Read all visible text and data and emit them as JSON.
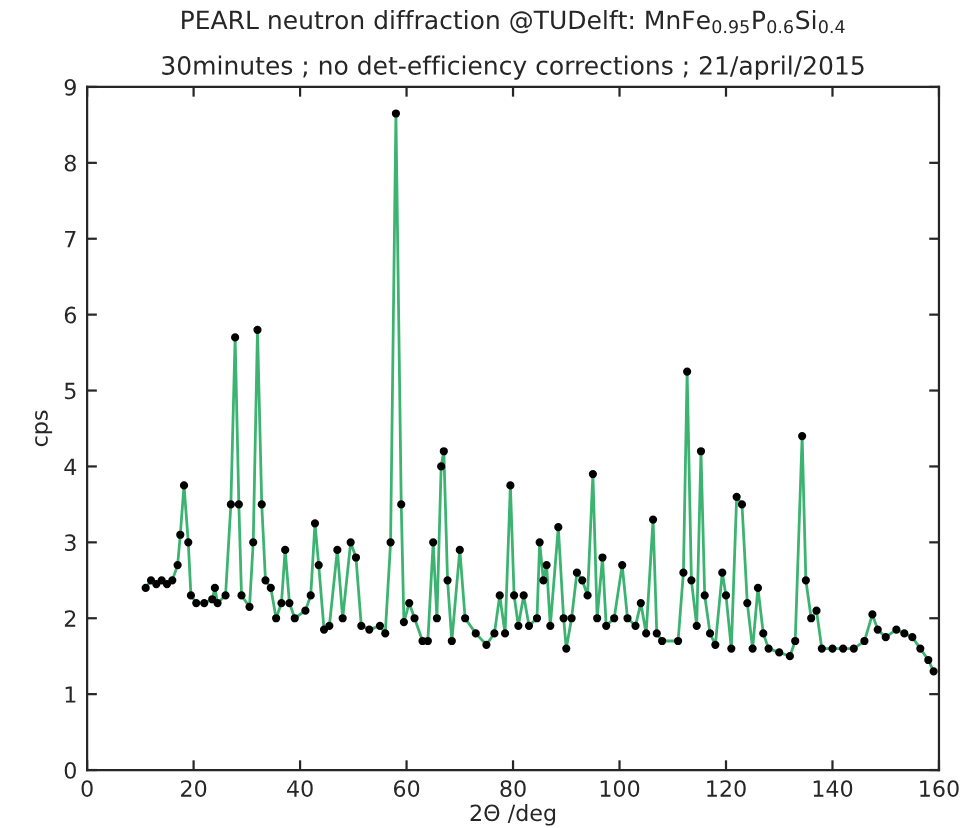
{
  "chart_data": {
    "type": "line",
    "title": "PEARL neutron diffraction @TUDelft: MnFe$_{0.95}$P$_{0.6}$Si$_{0.4}$",
    "subtitle": "30minutes ; no det-efficiency corrections ; 21/april/2015",
    "xlabel": "2Θ /deg",
    "ylabel": "cps",
    "series": [
      {
        "color": "#3cb371",
        "x": [
          11,
          12,
          13,
          14,
          15,
          16,
          17,
          17.5,
          18.2,
          19,
          19.5,
          20.5,
          22,
          23.5,
          24,
          24.5,
          26,
          27,
          27.8,
          28.5,
          29,
          30.5,
          31.2,
          32,
          32.8,
          33.5,
          34.5,
          35.5,
          36.5,
          37.2,
          38,
          39,
          41,
          42,
          42.8,
          43.5,
          44.5,
          45.5,
          47,
          48,
          49.5,
          50.5,
          51.5,
          53,
          55,
          56,
          57,
          58,
          59,
          59.5,
          60.5,
          61.5,
          63,
          64,
          65,
          65.7,
          66.5,
          67,
          67.7,
          68.5,
          70,
          71,
          73,
          75,
          76.5,
          77.5,
          78.5,
          79.5,
          80.2,
          81,
          82,
          83,
          84.5,
          85,
          85.7,
          86.3,
          87,
          88.5,
          89.5,
          90,
          91,
          92,
          93,
          94,
          95,
          95.8,
          96.8,
          97.5,
          99,
          100.5,
          101.5,
          103,
          104,
          105,
          106.3,
          107,
          108,
          111,
          112,
          112.7,
          113.5,
          114.5,
          115.3,
          116,
          117,
          118,
          119.3,
          120,
          121,
          122,
          123,
          124,
          125,
          126,
          127,
          128,
          130,
          132,
          133,
          134.3,
          135,
          136,
          137,
          138,
          140,
          142,
          144,
          146,
          147.5,
          148.5,
          150,
          152,
          153.5,
          155,
          156.5,
          158,
          159
        ],
        "values": [
          2.4,
          2.5,
          2.45,
          2.5,
          2.45,
          2.5,
          2.7,
          3.1,
          3.75,
          3.0,
          2.3,
          2.2,
          2.2,
          2.25,
          2.4,
          2.2,
          2.3,
          3.5,
          5.7,
          3.5,
          2.3,
          2.15,
          3.0,
          5.8,
          3.5,
          2.5,
          2.4,
          2.0,
          2.2,
          2.9,
          2.2,
          2.0,
          2.1,
          2.3,
          3.25,
          2.7,
          1.85,
          1.9,
          2.9,
          2.0,
          3.0,
          2.8,
          1.9,
          1.85,
          1.9,
          1.8,
          3.0,
          8.65,
          3.5,
          1.95,
          2.2,
          2.0,
          1.7,
          1.7,
          3.0,
          2.0,
          4.0,
          4.2,
          2.5,
          1.7,
          2.9,
          2.0,
          1.8,
          1.65,
          1.8,
          2.3,
          1.8,
          3.75,
          2.3,
          1.9,
          2.3,
          1.9,
          2.0,
          3.0,
          2.5,
          2.7,
          1.9,
          3.2,
          2.0,
          1.6,
          2.0,
          2.6,
          2.5,
          2.3,
          3.9,
          2.0,
          2.8,
          1.9,
          2.0,
          2.7,
          2.0,
          1.9,
          2.2,
          1.8,
          3.3,
          1.8,
          1.7,
          1.7,
          2.6,
          5.25,
          2.5,
          1.9,
          4.2,
          2.3,
          1.8,
          1.65,
          2.6,
          2.3,
          1.6,
          3.6,
          3.5,
          2.2,
          1.6,
          2.4,
          1.8,
          1.6,
          1.55,
          1.5,
          1.7,
          4.4,
          2.5,
          2.0,
          2.1,
          1.6,
          1.6,
          1.6,
          1.6,
          1.7,
          2.05,
          1.85,
          1.75,
          1.85,
          1.8,
          1.75,
          1.6,
          1.45,
          1.3
        ]
      }
    ],
    "marker": "circle",
    "line_style": "solid",
    "grid": false,
    "legend": false,
    "xlim": [
      0,
      160
    ],
    "xticks": [
      0,
      20,
      40,
      60,
      80,
      100,
      120,
      140,
      160
    ],
    "ylim": [
      0,
      9
    ],
    "yticks": [
      0,
      1,
      2,
      3,
      4,
      5,
      6,
      7,
      8,
      9
    ]
  }
}
